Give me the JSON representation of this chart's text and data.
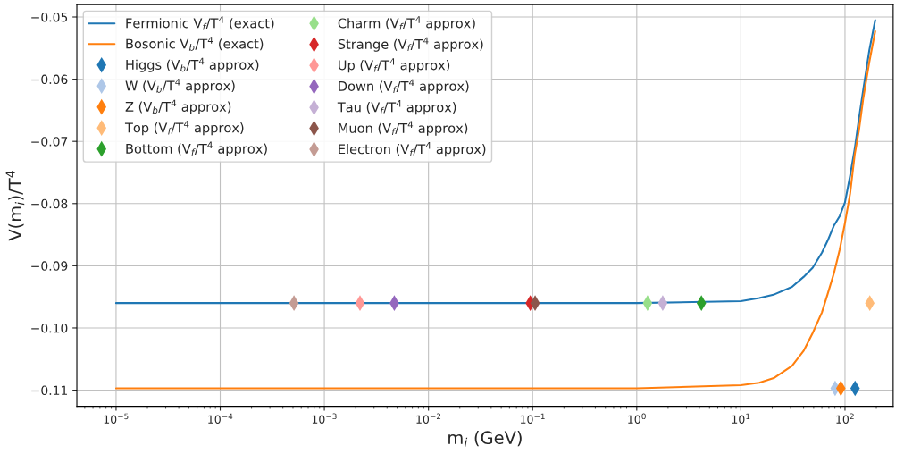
{
  "chart_data": {
    "type": "scatter",
    "xlabel": "m$_{i}$ (GeV)",
    "ylabel": "V(m$_{i}$)/T$^{4}$",
    "log": "x",
    "grid": true,
    "legend": "top left",
    "xlim": [
      4.2e-06,
      290
    ],
    "ylim": [
      -0.1126,
      -0.048
    ],
    "xticks": [
      {
        "value": 1e-05,
        "label": "10$^{−5}$"
      },
      {
        "value": 0.0001,
        "label": "10$^{−4}$"
      },
      {
        "value": 0.001,
        "label": "10$^{−3}$"
      },
      {
        "value": 0.01,
        "label": "10$^{−2}$"
      },
      {
        "value": 0.1,
        "label": "10$^{−1}$"
      },
      {
        "value": 1,
        "label": "10$^{0}$"
      },
      {
        "value": 10,
        "label": "10$^{1}$"
      },
      {
        "value": 100,
        "label": "10$^{2}$"
      }
    ],
    "yticks": [
      {
        "value": -0.05,
        "label": "−0.05"
      },
      {
        "value": -0.06,
        "label": "−0.06"
      },
      {
        "value": -0.07,
        "label": "−0.07"
      },
      {
        "value": -0.08,
        "label": "−0.08"
      },
      {
        "value": -0.09,
        "label": "−0.09"
      },
      {
        "value": -0.1,
        "label": "−0.10"
      },
      {
        "value": -0.11,
        "label": "−0.11"
      }
    ],
    "series": [
      {
        "name": "Fermionic V$_{f}$/T$^{4}$ (exact)",
        "type": "line",
        "marker": "none",
        "color": "#1f77b4",
        "x": [
          1e-05,
          1,
          10,
          15,
          21,
          31,
          40,
          49,
          60,
          68,
          78,
          89,
          100,
          112,
          124,
          136,
          150,
          171,
          195
        ],
        "values": [
          -0.096,
          -0.096,
          -0.0957,
          -0.0952,
          -0.0946,
          -0.0934,
          -0.0918,
          -0.0903,
          -0.0879,
          -0.086,
          -0.0836,
          -0.082,
          -0.0798,
          -0.0755,
          -0.0712,
          -0.0664,
          -0.0616,
          -0.0554,
          -0.0505
        ]
      },
      {
        "name": "Bosonic V$_{b}$/T$^{4}$ (exact)",
        "type": "line",
        "marker": "none",
        "color": "#ff7f0e",
        "x": [
          1e-05,
          1,
          10,
          15,
          21,
          31,
          40,
          49,
          60,
          68,
          78,
          89,
          100,
          112,
          124,
          136,
          150,
          171,
          195
        ],
        "values": [
          -0.1097,
          -0.1097,
          -0.1092,
          -0.1088,
          -0.108,
          -0.1061,
          -0.1037,
          -0.1008,
          -0.0975,
          -0.0946,
          -0.0913,
          -0.0874,
          -0.0831,
          -0.0784,
          -0.0721,
          -0.0683,
          -0.063,
          -0.0573,
          -0.0523
        ]
      },
      {
        "name": "Higgs (V$_{b}$/T$^{4}$ approx)",
        "marker": "diamond",
        "color": "#1f77b4",
        "x": [
          125
        ],
        "values": [
          -0.1097
        ]
      },
      {
        "name": "W (V$_{b}$/T$^{4}$ approx)",
        "marker": "diamond",
        "color": "#aec7e8",
        "x": [
          80.4
        ],
        "values": [
          -0.1097
        ]
      },
      {
        "name": "Z (V$_{b}$/T$^{4}$ approx)",
        "marker": "diamond",
        "color": "#ff7f0e",
        "x": [
          91.2
        ],
        "values": [
          -0.1097
        ]
      },
      {
        "name": "Top (V$_{f}$/T$^{4}$ approx)",
        "marker": "diamond",
        "color": "#ffbb78",
        "x": [
          173
        ],
        "values": [
          -0.096
        ]
      },
      {
        "name": "Bottom (V$_{f}$/T$^{4}$ approx)",
        "marker": "diamond",
        "color": "#2ca02c",
        "x": [
          4.18
        ],
        "values": [
          -0.096
        ]
      },
      {
        "name": "Charm (V$_{f}$/T$^{4}$ approx)",
        "marker": "diamond",
        "color": "#98df8a",
        "x": [
          1.27
        ],
        "values": [
          -0.096
        ]
      },
      {
        "name": "Strange (V$_{f}$/T$^{4}$ approx)",
        "marker": "diamond",
        "color": "#d62728",
        "x": [
          0.095
        ],
        "values": [
          -0.096
        ]
      },
      {
        "name": "Up (V$_{f}$/T$^{4}$ approx)",
        "marker": "diamond",
        "color": "#ff9896",
        "x": [
          0.0022
        ],
        "values": [
          -0.096
        ]
      },
      {
        "name": "Down (V$_{f}$/T$^{4}$ approx)",
        "marker": "diamond",
        "color": "#9467bd",
        "x": [
          0.0047
        ],
        "values": [
          -0.096
        ]
      },
      {
        "name": "Tau (V$_{f}$/T$^{4}$ approx)",
        "marker": "diamond",
        "color": "#c5b0d5",
        "x": [
          1.777
        ],
        "values": [
          -0.096
        ]
      },
      {
        "name": "Muon (V$_{f}$/T$^{4}$ approx)",
        "marker": "diamond",
        "color": "#8c564b",
        "x": [
          0.1057
        ],
        "values": [
          -0.096
        ]
      },
      {
        "name": "Electron (V$_{f}$/T$^{4}$ approx)",
        "marker": "diamond",
        "color": "#c49c94",
        "x": [
          0.000511
        ],
        "values": [
          -0.096
        ]
      }
    ]
  }
}
